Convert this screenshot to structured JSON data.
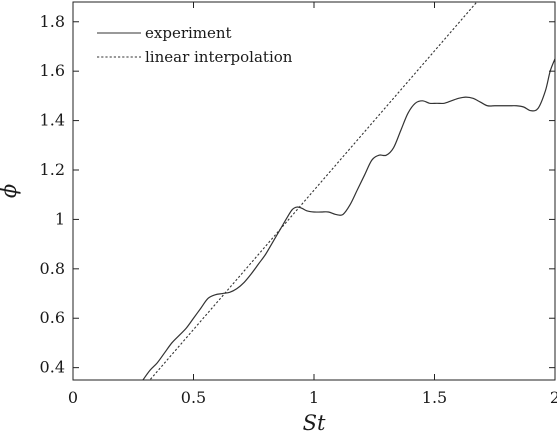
{
  "chart_data": {
    "type": "line",
    "xlabel": "St",
    "ylabel": "ϕ",
    "xlim": [
      0,
      2
    ],
    "ylim": [
      0.35,
      1.88
    ],
    "xticks": [
      0,
      0.5,
      1,
      1.5,
      2
    ],
    "xtick_labels": [
      "0",
      "0.5",
      "1",
      "1.5",
      "2"
    ],
    "yticks": [
      0.4,
      0.6,
      0.8,
      1.0,
      1.2,
      1.4,
      1.6,
      1.8
    ],
    "ytick_labels": [
      "0.4",
      "0.6",
      "0.8",
      "1",
      "1.2",
      "1.4",
      "1.6",
      "1.8"
    ],
    "grid": false,
    "legend_position": "top-left",
    "series": [
      {
        "name": "experiment",
        "style": "solid",
        "color": "#333333",
        "x": [
          0.29,
          0.32,
          0.35,
          0.38,
          0.41,
          0.44,
          0.47,
          0.5,
          0.53,
          0.56,
          0.59,
          0.62,
          0.65,
          0.68,
          0.71,
          0.74,
          0.77,
          0.8,
          0.83,
          0.86,
          0.89,
          0.91,
          0.93,
          0.95,
          0.97,
          1.0,
          1.03,
          1.06,
          1.09,
          1.12,
          1.15,
          1.18,
          1.21,
          1.24,
          1.27,
          1.3,
          1.33,
          1.36,
          1.39,
          1.42,
          1.45,
          1.48,
          1.51,
          1.54,
          1.57,
          1.6,
          1.63,
          1.66,
          1.69,
          1.72,
          1.75,
          1.78,
          1.81,
          1.84,
          1.87,
          1.9,
          1.93,
          1.96,
          1.98,
          2.0
        ],
        "y": [
          0.35,
          0.39,
          0.42,
          0.46,
          0.5,
          0.53,
          0.56,
          0.6,
          0.64,
          0.68,
          0.695,
          0.7,
          0.705,
          0.72,
          0.745,
          0.78,
          0.82,
          0.86,
          0.91,
          0.96,
          1.01,
          1.04,
          1.05,
          1.045,
          1.035,
          1.03,
          1.03,
          1.03,
          1.02,
          1.02,
          1.06,
          1.12,
          1.18,
          1.24,
          1.26,
          1.26,
          1.29,
          1.36,
          1.43,
          1.47,
          1.48,
          1.47,
          1.47,
          1.47,
          1.48,
          1.49,
          1.495,
          1.49,
          1.475,
          1.46,
          1.46,
          1.46,
          1.46,
          1.46,
          1.455,
          1.44,
          1.45,
          1.52,
          1.6,
          1.65
        ]
      },
      {
        "name": "linear interpolation",
        "style": "dotted",
        "color": "#333333",
        "x": [
          0.31,
          1.68
        ],
        "y": [
          0.34,
          1.885
        ]
      }
    ]
  }
}
